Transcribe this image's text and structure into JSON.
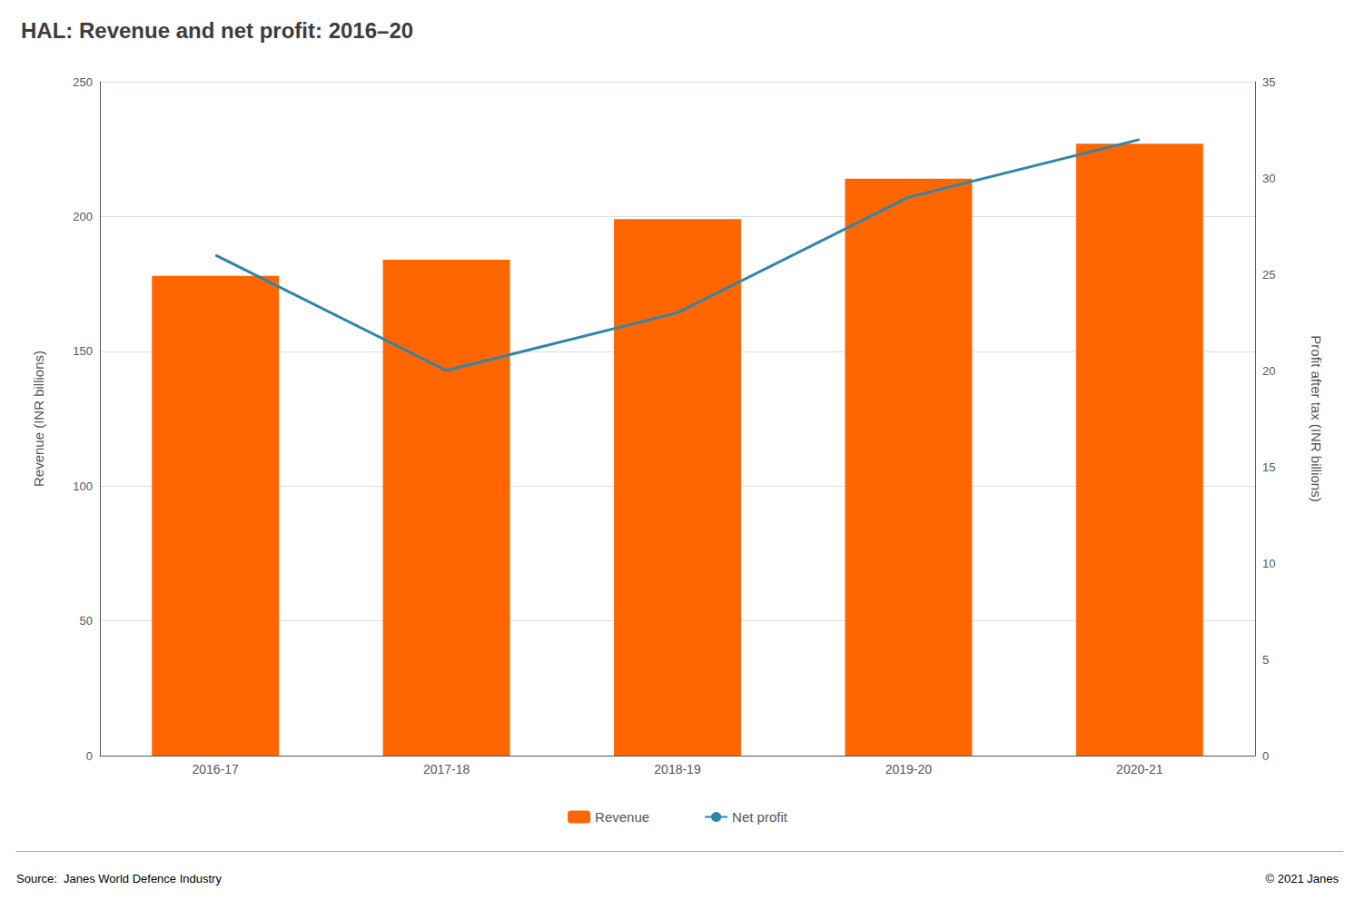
{
  "chart_data": {
    "type": "bar",
    "title": "HAL: Revenue and net profit: 2016–20",
    "categories": [
      "2016-17",
      "2017-18",
      "2018-19",
      "2019-20",
      "2020-21"
    ],
    "series": [
      {
        "name": "Revenue",
        "type": "bar",
        "color": "#FF6600",
        "values": [
          178,
          184,
          199,
          214,
          227
        ]
      },
      {
        "name": "Net profit",
        "type": "line",
        "color": "#2E86AB",
        "axis": "y2",
        "marker": "none",
        "values": [
          26,
          20,
          23,
          29,
          32
        ]
      }
    ],
    "ylabel": "Revenue (INR billions)",
    "y2label": "Profit after tax (INR billions)",
    "ylim": [
      0,
      250
    ],
    "yticks": [
      0,
      50,
      100,
      150,
      200,
      250
    ],
    "y2lim": [
      0,
      35
    ],
    "y2ticks": [
      0,
      5,
      10,
      15,
      20,
      25,
      30,
      35
    ],
    "grid": true,
    "legend": "bottom",
    "annotations": [
      "Source:  Janes World Defence Industry",
      "© 2021 Janes"
    ]
  }
}
